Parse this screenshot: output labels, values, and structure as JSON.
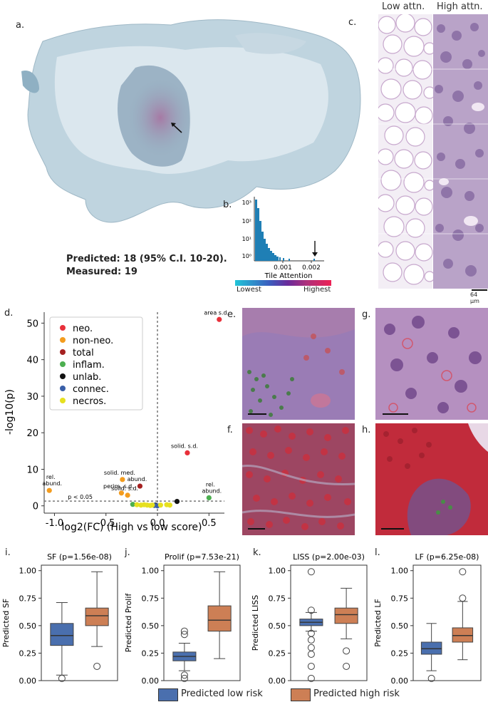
{
  "panels": {
    "a": "a.",
    "b": "b.",
    "c": "c.",
    "d": "d.",
    "e": "e.",
    "f": "f.",
    "g": "g.",
    "h": "h.",
    "i": "i.",
    "j": "j.",
    "k": "k.",
    "l": "l."
  },
  "panel_a": {
    "predicted": "Predicted: 18 (95% C.I. 10-20).",
    "measured": "Measured: 19"
  },
  "panel_b": {
    "xlabel": "Tile Attention",
    "xticks": [
      "0.001",
      "0.002"
    ],
    "yticks": [
      "10³",
      "10²",
      "10¹",
      "10⁰"
    ],
    "colorbar_low": "Lowest",
    "colorbar_high": "Highest"
  },
  "panel_c": {
    "low_label": "Low attn.",
    "high_label": "High attn.",
    "scale": "64 μm"
  },
  "colors": {
    "neo": "#e8303a",
    "non_neo": "#f39c1e",
    "total": "#a52121",
    "inflam": "#4caf50",
    "unlab": "#111111",
    "connec": "#3a5fa8",
    "necros": "#e6e020",
    "low_box": "#4a6fae",
    "high_box": "#cd7f55"
  },
  "chart_data": [
    {
      "type": "scatter",
      "xlabel": "log2(FC) (High vs low score)",
      "ylabel": "-log10(p)",
      "xlim": [
        -1.1,
        0.65
      ],
      "ylim": [
        -2,
        53
      ],
      "xticks": [
        "-1.0",
        "-0.5",
        "0.0",
        "0.5"
      ],
      "yticks": [
        "0",
        "10",
        "20",
        "30",
        "40",
        "50"
      ],
      "threshold_label": "p < 0.05",
      "threshold_y": 1.3,
      "legend": [
        "neo.",
        "non-neo.",
        "total",
        "inflam.",
        "unlab.",
        "connec.",
        "necros."
      ],
      "points": [
        {
          "x": 0.6,
          "y": 51,
          "group": "neo.",
          "label": "area s.d."
        },
        {
          "x": 0.29,
          "y": 14.5,
          "group": "neo.",
          "label": "solid. s.d."
        },
        {
          "x": -1.05,
          "y": 4.2,
          "group": "non-neo.",
          "label": "rel. abund."
        },
        {
          "x": -0.34,
          "y": 7.2,
          "group": "non-neo.",
          "label": "solid. med."
        },
        {
          "x": -0.35,
          "y": 3.5,
          "group": "non-neo.",
          "label": "perim. s.d."
        },
        {
          "x": -0.29,
          "y": 2.9,
          "group": "non-neo.",
          "label": "solid. s.d."
        },
        {
          "x": -0.17,
          "y": 5.4,
          "group": "total",
          "label": "abund."
        },
        {
          "x": 0.5,
          "y": 2.2,
          "group": "inflam.",
          "label": "rel. abund."
        },
        {
          "x": 0.19,
          "y": 1.2,
          "group": "unlab.",
          "label": ""
        },
        {
          "x": -0.02,
          "y": 0.2,
          "group": "unlab.",
          "label": ""
        },
        {
          "x": 0.0,
          "y": 0.0,
          "group": "connec.",
          "label": ""
        },
        {
          "x": -0.03,
          "y": 0.1,
          "group": "connec.",
          "label": ""
        },
        {
          "x": -0.24,
          "y": 0.4,
          "group": "inflam.",
          "label": ""
        },
        {
          "x": -0.2,
          "y": 0.3,
          "group": "necros.",
          "label": ""
        },
        {
          "x": -0.16,
          "y": 0.2,
          "group": "necros.",
          "label": ""
        },
        {
          "x": -0.13,
          "y": 0.3,
          "group": "necros.",
          "label": ""
        },
        {
          "x": -0.1,
          "y": 0.2,
          "group": "necros.",
          "label": ""
        },
        {
          "x": -0.07,
          "y": 0.1,
          "group": "necros.",
          "label": ""
        },
        {
          "x": -0.05,
          "y": 0.2,
          "group": "necros.",
          "label": ""
        },
        {
          "x": 0.03,
          "y": 0.2,
          "group": "necros.",
          "label": ""
        },
        {
          "x": 0.09,
          "y": 0.3,
          "group": "necros.",
          "label": ""
        },
        {
          "x": 0.12,
          "y": 0.2,
          "group": "necros.",
          "label": ""
        }
      ]
    },
    {
      "type": "box",
      "title": "SF (p=1.56e-08)",
      "ylabel": "Predicted SF",
      "ylim": [
        0,
        1.05
      ],
      "yticks": [
        "0.00",
        "0.25",
        "0.50",
        "0.75",
        "1.00"
      ],
      "series": [
        {
          "name": "Predicted low risk",
          "q1": 0.32,
          "median": 0.41,
          "q3": 0.52,
          "whisker_low": 0.05,
          "whisker_high": 0.71,
          "outliers": [
            0.02
          ]
        },
        {
          "name": "Predicted high risk",
          "q1": 0.5,
          "median": 0.59,
          "q3": 0.66,
          "whisker_low": 0.31,
          "whisker_high": 0.99,
          "outliers": [
            0.13
          ]
        }
      ]
    },
    {
      "type": "box",
      "title": "Prolif (p=7.53e-21)",
      "ylabel": "Predicted Prolif",
      "ylim": [
        0,
        1.05
      ],
      "yticks": [
        "0.00",
        "0.25",
        "0.50",
        "0.75",
        "1.00"
      ],
      "series": [
        {
          "name": "Predicted low risk",
          "q1": 0.18,
          "median": 0.22,
          "q3": 0.26,
          "whisker_low": 0.09,
          "whisker_high": 0.34,
          "outliers": [
            0.02,
            0.05,
            0.42,
            0.45
          ]
        },
        {
          "name": "Predicted high risk",
          "q1": 0.45,
          "median": 0.55,
          "q3": 0.68,
          "whisker_low": 0.2,
          "whisker_high": 0.99,
          "outliers": []
        }
      ]
    },
    {
      "type": "box",
      "title": "LISS (p=2.00e-03)",
      "ylabel": "Predicted LISS",
      "ylim": [
        0,
        1.05
      ],
      "yticks": [
        "0.00",
        "0.25",
        "0.50",
        "0.75",
        "1.00"
      ],
      "series": [
        {
          "name": "Predicted low risk",
          "q1": 0.5,
          "median": 0.53,
          "q3": 0.56,
          "whisker_low": 0.45,
          "whisker_high": 0.62,
          "outliers": [
            0.02,
            0.13,
            0.24,
            0.3,
            0.37,
            0.43,
            0.64,
            0.99
          ]
        },
        {
          "name": "Predicted high risk",
          "q1": 0.52,
          "median": 0.6,
          "q3": 0.66,
          "whisker_low": 0.38,
          "whisker_high": 0.84,
          "outliers": [
            0.13,
            0.27
          ]
        }
      ]
    },
    {
      "type": "box",
      "title": "LF (p=6.25e-08)",
      "ylabel": "Predicted LF",
      "ylim": [
        0,
        1.05
      ],
      "yticks": [
        "0.00",
        "0.25",
        "0.50",
        "0.75",
        "1.00"
      ],
      "series": [
        {
          "name": "Predicted low risk",
          "q1": 0.24,
          "median": 0.29,
          "q3": 0.35,
          "whisker_low": 0.09,
          "whisker_high": 0.52,
          "outliers": [
            0.02
          ]
        },
        {
          "name": "Predicted high risk",
          "q1": 0.35,
          "median": 0.41,
          "q3": 0.48,
          "whisker_low": 0.19,
          "whisker_high": 0.72,
          "outliers": [
            0.75,
            0.99
          ]
        }
      ]
    }
  ],
  "legend": {
    "low": "Predicted low risk",
    "high": "Predicted high risk"
  }
}
